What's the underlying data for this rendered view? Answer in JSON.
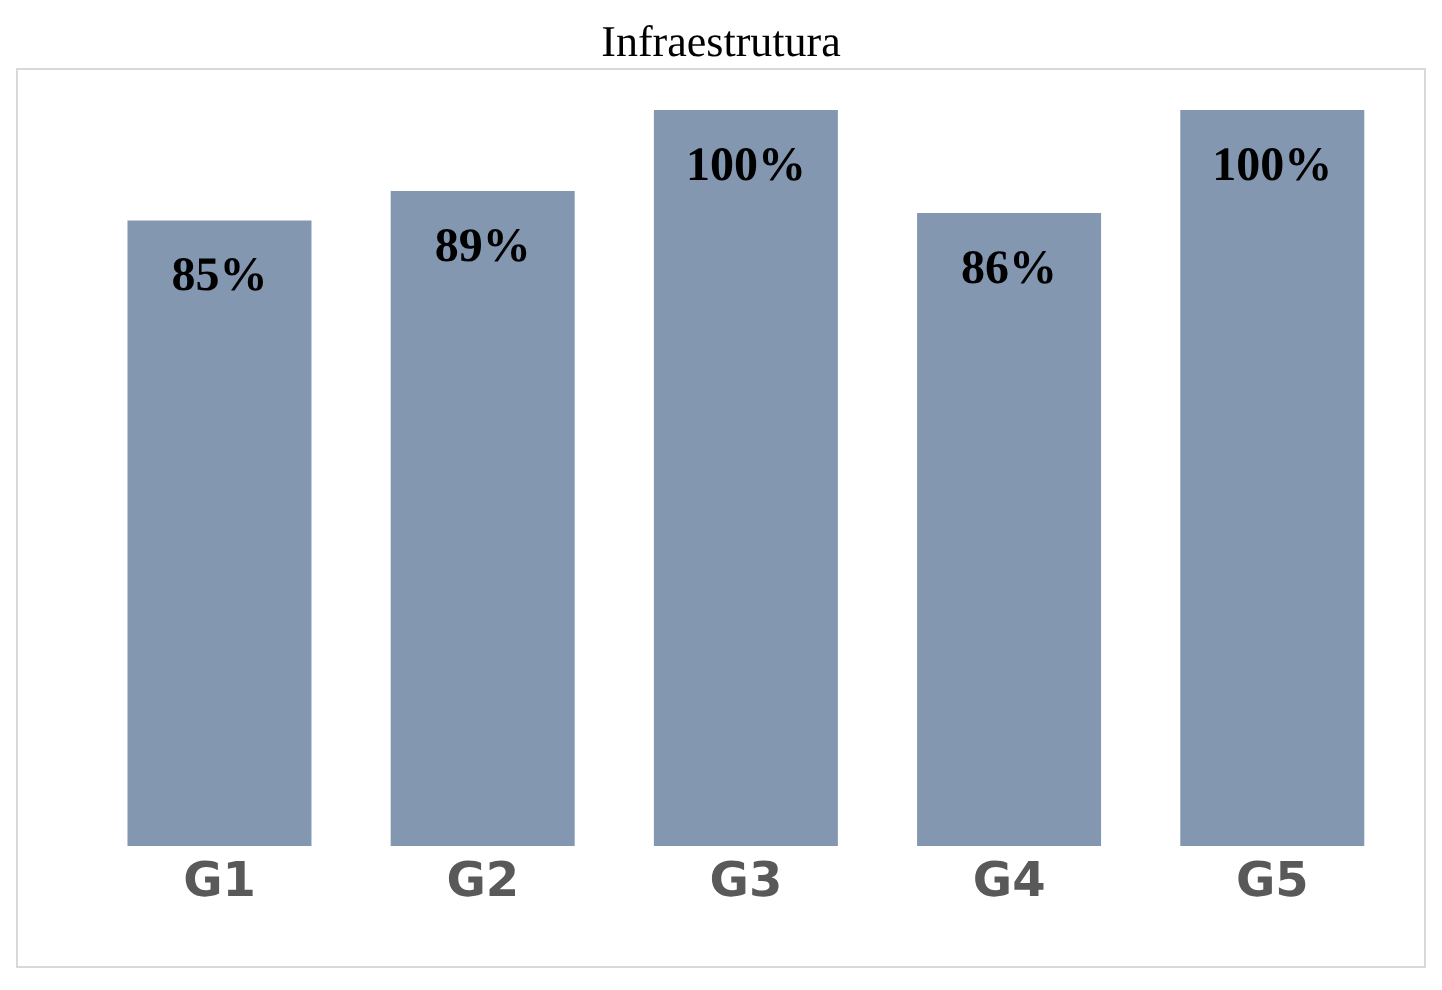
{
  "chart_data": {
    "type": "bar",
    "title": "Infraestrutura",
    "categories": [
      "G1",
      "G2",
      "G3",
      "G4",
      "G5"
    ],
    "values": [
      85,
      89,
      100,
      86,
      100
    ],
    "value_labels": [
      "85%",
      "89%",
      "100%",
      "86%",
      "100%"
    ],
    "color": "#8497b0"
  }
}
